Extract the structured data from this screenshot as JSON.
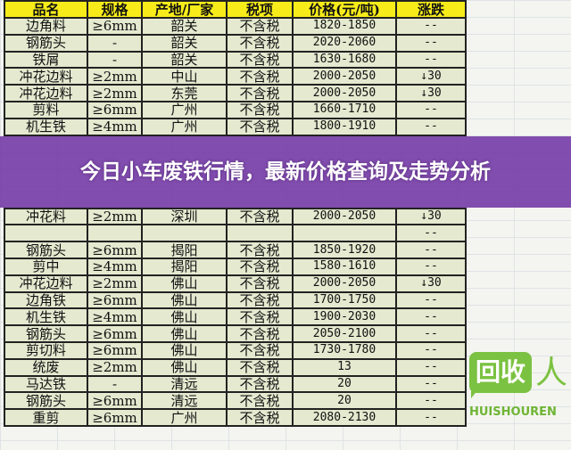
{
  "headers": [
    "品名",
    "规格",
    "产地/厂家",
    "税项",
    "价格(元/吨)",
    "涨跌"
  ],
  "rows": [
    [
      "边角料",
      "≥6mm",
      "韶关",
      "不含税",
      "1820-1850",
      "--"
    ],
    [
      "钢筋头",
      "-",
      "韶关",
      "不含税",
      "2020-2060",
      "--"
    ],
    [
      "铁屑",
      "-",
      "韶关",
      "不含税",
      "1630-1680",
      "--"
    ],
    [
      "冲花边料",
      "≥2mm",
      "中山",
      "不含税",
      "2000-2050",
      "↓30"
    ],
    [
      "冲花边料",
      "≥2mm",
      "东莞",
      "不含税",
      "2000-2050",
      "↓30"
    ],
    [
      "剪料",
      "≥6mm",
      "广州",
      "不含税",
      "1660-1710",
      "--"
    ],
    [
      "机生铁",
      "≥4mm",
      "广州",
      "不含税",
      "1800-1910",
      "--"
    ],
    [
      "冲花料",
      "≥2mm",
      "深圳",
      "不含税",
      "2000-2050",
      "↓30"
    ],
    [
      "",
      "",
      "",
      "",
      "",
      "--"
    ],
    [
      "钢筋头",
      "≥6mm",
      "揭阳",
      "不含税",
      "1850-1920",
      "--"
    ],
    [
      "剪中",
      "≥4mm",
      "揭阳",
      "不含税",
      "1580-1610",
      "--"
    ],
    [
      "冲花边料",
      "≥2mm",
      "佛山",
      "不含税",
      "2000-2050",
      "↓30"
    ],
    [
      "边角铁",
      "≥6mm",
      "佛山",
      "不含税",
      "1700-1750",
      "--"
    ],
    [
      "机生铁",
      "≥4mm",
      "佛山",
      "不含税",
      "1900-2030",
      "--"
    ],
    [
      "钢筋头",
      "≥6mm",
      "佛山",
      "不含税",
      "2050-2100",
      "--"
    ],
    [
      "剪切料",
      "≥6mm",
      "佛山",
      "不含税",
      "1730-1780",
      "--"
    ],
    [
      "统废",
      "≥2mm",
      "佛山",
      "不含税",
      "13",
      "--"
    ],
    [
      "马达铁",
      "-",
      "清远",
      "不含税",
      "20",
      "--"
    ],
    [
      "钢筋头",
      "≥6mm",
      "清远",
      "不含税",
      "20",
      "--"
    ],
    [
      "重剪",
      "≥6mm",
      "广州",
      "不含税",
      "2080-2130",
      "--"
    ]
  ],
  "overlay_title": "今日小车废铁行情，最新价格查询及走势分析",
  "watermark": {
    "logo_text": "回收人",
    "logo_sub": "HUISHOUREN",
    "color": "#7cc242"
  },
  "colors": {
    "header_bg": "#f7ec1a",
    "cell_bg": "#e4e9cf",
    "overlay": "#763ea8"
  }
}
